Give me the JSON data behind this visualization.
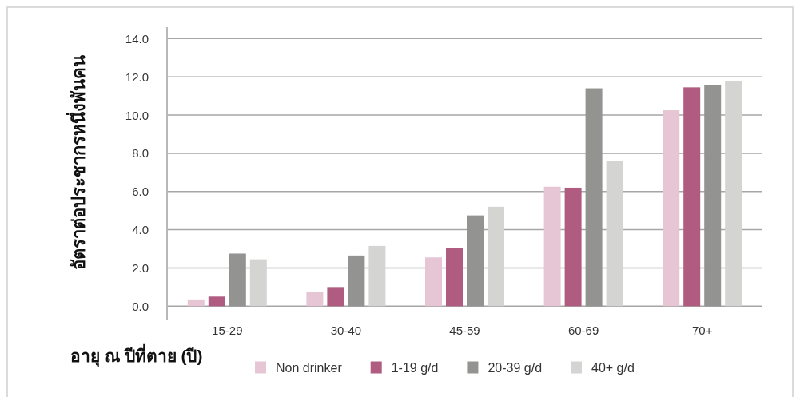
{
  "chart_data": {
    "type": "bar",
    "ylabel": "อัตราต่อประชากรหนึ่งพันคน",
    "xlabel": "อายุ ณ ปีที่ตาย (ปี)",
    "categories": [
      "15-29",
      "30-40",
      "45-59",
      "60-69",
      "70+"
    ],
    "series": [
      {
        "name": "Non drinker",
        "color": "#e6c5d5",
        "values": [
          0.35,
          0.75,
          2.55,
          6.25,
          10.25
        ]
      },
      {
        "name": "1-19 g/d",
        "color": "#b05c80",
        "values": [
          0.5,
          1.0,
          3.05,
          6.2,
          11.45
        ]
      },
      {
        "name": "20-39 g/d",
        "color": "#939391",
        "values": [
          2.75,
          2.65,
          4.75,
          11.4,
          11.55
        ]
      },
      {
        "name": "40+ g/d",
        "color": "#d4d4d2",
        "values": [
          2.45,
          3.15,
          5.2,
          7.6,
          11.8
        ]
      }
    ],
    "ylim": [
      -0.7,
      14.6
    ],
    "yticks": [
      {
        "value": 0,
        "label": "0.0"
      },
      {
        "value": 2,
        "label": "2.0"
      },
      {
        "value": 4,
        "label": "4.0"
      },
      {
        "value": 6,
        "label": "6.0"
      },
      {
        "value": 8,
        "label": "8.0"
      },
      {
        "value": 10,
        "label": "10.0"
      },
      {
        "value": 12,
        "label": "12.0"
      },
      {
        "value": 14,
        "label": "14.0"
      }
    ],
    "grid": "y",
    "legend": "bottom"
  }
}
